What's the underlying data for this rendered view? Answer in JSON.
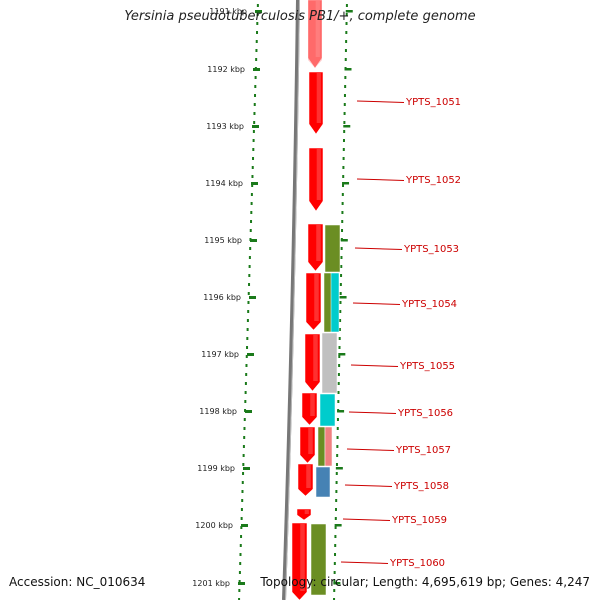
{
  "title": "Yersinia pseudotuberculosis PB1/+, complete genome",
  "accession": "Accession: NC_010634",
  "summary": "Topology: circular; Length: 4,695,619 bp; Genes: 4,247",
  "ticks": [
    "1191 kbp",
    "1192 kbp",
    "1193 kbp",
    "1194 kbp",
    "1195 kbp",
    "1196 kbp",
    "1197 kbp",
    "1198 kbp",
    "1199 kbp",
    "1200 kbp",
    "1201 kbp"
  ],
  "genes": [
    "YPTS_1051",
    "YPTS_1052",
    "YPTS_1053",
    "YPTS_1054",
    "YPTS_1055",
    "YPTS_1056",
    "YPTS_1057",
    "YPTS_1058",
    "YPTS_1059",
    "YPTS_1060"
  ],
  "colors": {
    "cds": "#ff0000",
    "label": "#cc0000",
    "tick": "#1a7a1a",
    "backbone": "#777777",
    "cog_olive": "#6b8e23",
    "cog_cyan": "#00cccc",
    "cog_gray": "#c0c0c0",
    "cog_salmon": "#f08080",
    "cog_blue": "#4682b4"
  }
}
